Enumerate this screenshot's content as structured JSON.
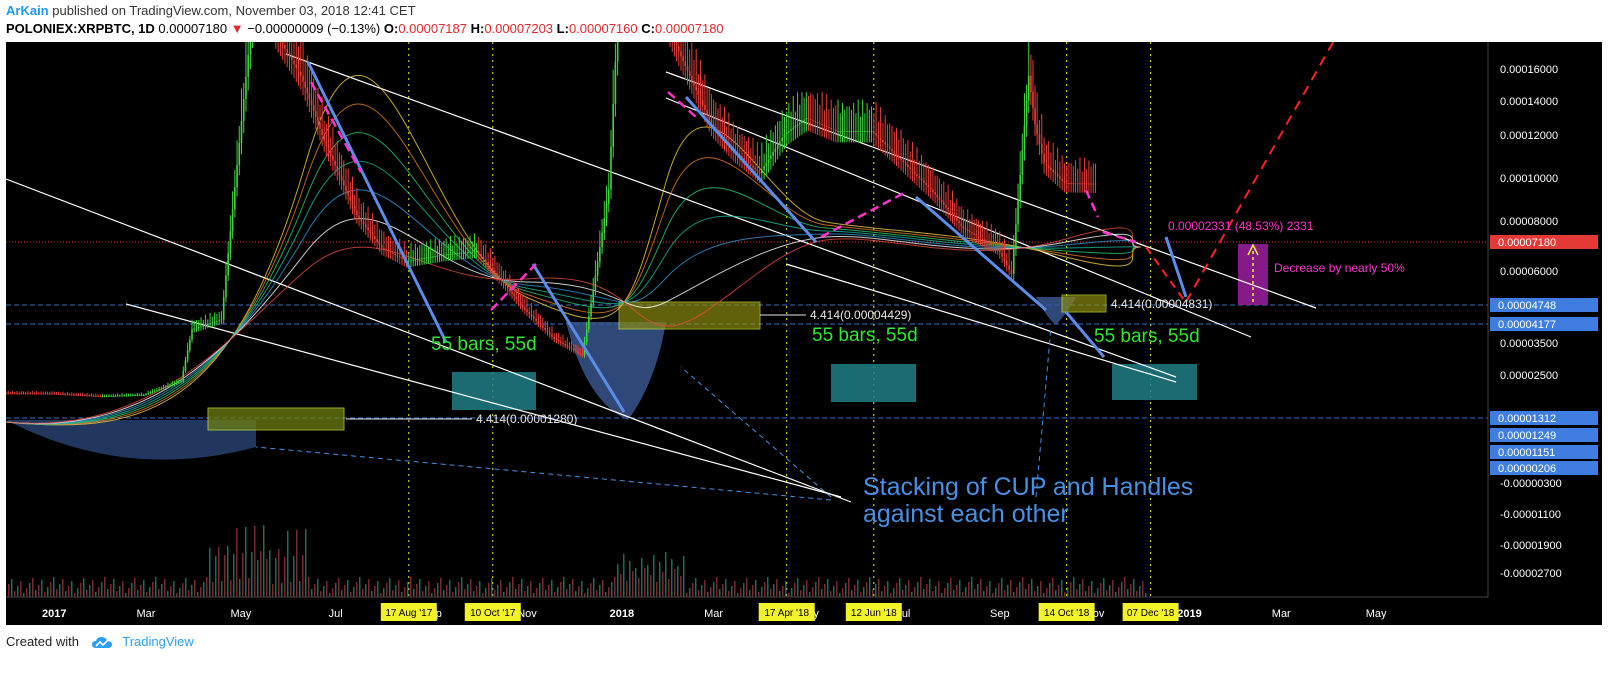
{
  "header": {
    "author": "ArKain",
    "published": "published on TradingView.com, November 03, 2018 12:41 CET",
    "symbol": "POLONIEX:XRPBTC, 1D",
    "last": "0.00007180",
    "change_arrow": "▼",
    "change": "−0.00000009 (−0.13%)",
    "o_label": "O:",
    "o_value": "0.00007187",
    "h_label": "H:",
    "h_value": "0.00007203",
    "l_label": "L:",
    "l_value": "0.00007160",
    "c_label": "C:",
    "c_value": "0.00007180"
  },
  "footer": {
    "created_with": "Created with",
    "brand": "TradingView",
    "logo_icon": "tradingview-cloud-icon"
  },
  "colors": {
    "background": "#000000",
    "axis_text": "#ffffff",
    "candle_up": "#3fd63f",
    "candle_down": "#e8413b",
    "dotted_yellow": "#f2f22a",
    "channel": "#ffffff",
    "blue_line": "#5b8de8",
    "magenta": "#ff33cc",
    "red_dashed": "#ff2222",
    "price_tag": "#e53935",
    "level_tag": "#3f7ee0",
    "annotation_blue": "#4a90e2",
    "annotation_green": "#2fe82f"
  },
  "chart_data": {
    "type": "line",
    "title": "POLONIEX:XRPBTC, 1D",
    "xlabel": "",
    "ylabel": "",
    "x_axis_labels": [
      "2017",
      "Mar",
      "May",
      "Jul",
      "Sep",
      "Nov",
      "2018",
      "Mar",
      "May",
      "Jul",
      "Sep",
      "Nov",
      "2019",
      "Mar",
      "May"
    ],
    "x_axis_highlight_labels": [
      "17 Aug '17",
      "10 Oct '17",
      "17 Apr '18",
      "12 Jun '18",
      "14 Oct '18",
      "07 Dec '18"
    ],
    "y_tick_labels": [
      "0.00016000",
      "0.00014000",
      "0.00012000",
      "0.00010000",
      "0.00008000",
      "0.00006000",
      "0.00003500",
      "0.00002500",
      "-0.00000300",
      "-0.00001100",
      "-0.00001900",
      "-0.00002700"
    ],
    "y_tags": [
      {
        "label": "0.00007180",
        "kind": "current"
      },
      {
        "label": "0.00004748",
        "kind": "level"
      },
      {
        "label": "0.00004177",
        "kind": "level"
      },
      {
        "label": "0.00001312",
        "kind": "level"
      },
      {
        "label": "0.00001249",
        "kind": "level"
      },
      {
        "label": "0.00001151",
        "kind": "level"
      },
      {
        "label": "0.00000206",
        "kind": "level"
      }
    ],
    "series": [
      {
        "values": [
          [
            "2016-12-01",
            7.3e-06
          ],
          [
            "2017-01-01",
            7.2e-06
          ],
          [
            "2017-02-01",
            6.4e-06
          ],
          [
            "2017-03-01",
            6.8e-06
          ],
          [
            "2017-03-25",
            1.1e-05
          ],
          [
            "2017-04-01",
            2.7e-05
          ],
          [
            "2017-04-20",
            3e-05
          ],
          [
            "2017-05-10",
            0.000125
          ],
          [
            "2017-05-16",
            0.000165
          ],
          [
            "2017-05-25",
            0.000118
          ],
          [
            "2017-06-10",
            0.000105
          ],
          [
            "2017-06-25",
            8.5e-05
          ],
          [
            "2017-07-16",
            6.2e-05
          ],
          [
            "2017-08-01",
            5.2e-05
          ],
          [
            "2017-08-17",
            4.8e-05
          ],
          [
            "2017-09-10",
            5e-05
          ],
          [
            "2017-10-01",
            5.1e-05
          ],
          [
            "2017-10-10",
            4.6e-05
          ],
          [
            "2017-11-01",
            3.3e-05
          ],
          [
            "2017-11-20",
            2.4e-05
          ],
          [
            "2017-12-08",
            1.9e-05
          ],
          [
            "2017-12-15",
            3.9e-05
          ],
          [
            "2017-12-25",
            7e-05
          ],
          [
            "2018-01-04",
            0.000162
          ],
          [
            "2018-01-10",
            0.000145
          ],
          [
            "2018-02-01",
            0.00012
          ],
          [
            "2018-02-15",
            0.000105
          ],
          [
            "2018-03-01",
            9e-05
          ],
          [
            "2018-03-15",
            8.2e-05
          ],
          [
            "2018-04-01",
            7.5e-05
          ],
          [
            "2018-04-17",
            8.7e-05
          ],
          [
            "2018-05-01",
            9.2e-05
          ],
          [
            "2018-05-20",
            8.8e-05
          ],
          [
            "2018-06-12",
            8.8e-05
          ],
          [
            "2018-07-01",
            7.9e-05
          ],
          [
            "2018-07-20",
            7e-05
          ],
          [
            "2018-08-10",
            5.8e-05
          ],
          [
            "2018-09-01",
            5.2e-05
          ],
          [
            "2018-09-10",
            4.4e-05
          ],
          [
            "2018-09-21",
            0.000105
          ],
          [
            "2018-09-25",
            9e-05
          ],
          [
            "2018-10-01",
            7.8e-05
          ],
          [
            "2018-10-14",
            7.2e-05
          ],
          [
            "2018-11-03",
            7.18e-05
          ]
        ]
      }
    ],
    "annotations": [
      {
        "text": "4.414(0.00001280)"
      },
      {
        "text": "4.414(0.00004429)"
      },
      {
        "text": "4.414(0.00004831)"
      },
      {
        "text": "55 bars, 55d"
      },
      {
        "text": "55 bars, 55d"
      },
      {
        "text": "55 bars, 55d"
      },
      {
        "text": "0.00002331 (48.53%) 2331"
      },
      {
        "text": "Decrease by nearly 50%"
      },
      {
        "text": "Stacking of CUP and Handles"
      },
      {
        "text": "against each other"
      }
    ]
  }
}
